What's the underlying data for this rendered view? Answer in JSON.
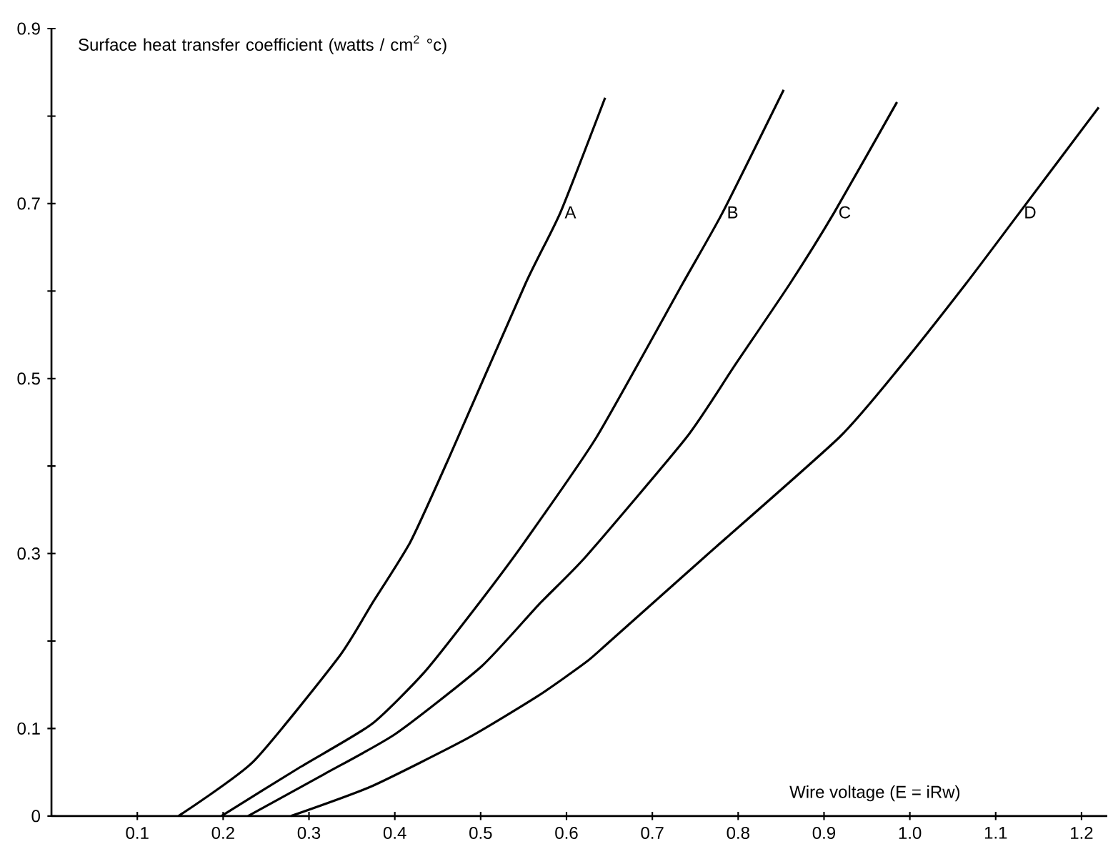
{
  "chart_data": {
    "type": "line",
    "xlabel": "Wire voltage (E = iRw)",
    "ylabel": "Surface heat transfer coefficient (watts / cm$^{2}$ °c)",
    "xlim": [
      0,
      1.23
    ],
    "ylim": [
      0,
      0.9
    ],
    "xticks": [
      0.1,
      0.2,
      0.3,
      0.4,
      0.5,
      0.6,
      0.7,
      0.8,
      0.9,
      {
        "value": 1.0,
        "label": "1.0"
      },
      1.1,
      1.2
    ],
    "yticks": [
      0,
      0.1,
      {
        "value": 0.2,
        "label": null
      },
      0.3,
      {
        "value": 0.4,
        "label": null
      },
      0.5,
      {
        "value": 0.6,
        "label": null
      },
      0.7,
      {
        "value": 0.8,
        "label": null
      },
      0.9
    ],
    "grid": false,
    "legend": false,
    "marker": "none",
    "line_style": "solid",
    "series": [
      {
        "name": "A",
        "color": "#000000",
        "x": [
          0.148,
          0.235,
          0.335,
          0.373,
          0.418,
          0.462,
          0.552,
          0.593,
          0.645
        ],
        "values": [
          0,
          0.062,
          0.182,
          0.242,
          0.313,
          0.407,
          0.608,
          0.69,
          0.821
        ]
      },
      {
        "name": "B",
        "color": "#000000",
        "x": [
          0.198,
          0.29,
          0.373,
          0.435,
          0.501,
          0.551,
          0.635,
          0.735,
          0.782,
          0.853
        ],
        "values": [
          0,
          0.056,
          0.105,
          0.165,
          0.247,
          0.313,
          0.433,
          0.608,
          0.69,
          0.83
        ]
      },
      {
        "name": "C",
        "color": "#000000",
        "x": [
          0.229,
          0.318,
          0.401,
          0.501,
          0.568,
          0.623,
          0.74,
          0.796,
          0.86,
          0.912,
          0.985
        ],
        "values": [
          0,
          0.048,
          0.094,
          0.171,
          0.242,
          0.297,
          0.433,
          0.515,
          0.608,
          0.69,
          0.816
        ]
      },
      {
        "name": "D",
        "color": "#000000",
        "x": [
          0.279,
          0.373,
          0.485,
          0.568,
          0.623,
          0.651,
          0.762,
          0.918,
          0.99,
          1.065,
          1.128,
          1.22
        ],
        "values": [
          0,
          0.034,
          0.089,
          0.138,
          0.176,
          0.2,
          0.297,
          0.433,
          0.515,
          0.608,
          0.69,
          0.81
        ]
      }
    ]
  }
}
